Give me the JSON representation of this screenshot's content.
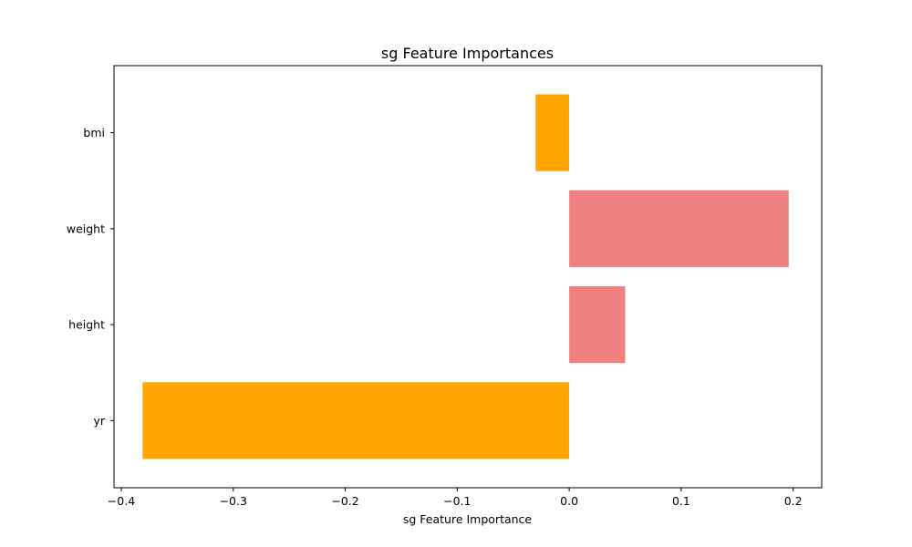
{
  "chart_data": {
    "type": "bar",
    "orientation": "horizontal",
    "title": "sg Feature Importances",
    "xlabel": "sg Feature Importance",
    "ylabel": "",
    "categories": [
      "bmi",
      "weight",
      "height",
      "yr"
    ],
    "values": [
      -0.03,
      0.196,
      0.05,
      -0.381
    ],
    "bar_colors": [
      "#ffa500",
      "#f08080",
      "#f08080",
      "#ffa500"
    ],
    "xlim": [
      -0.4065,
      0.2255
    ],
    "xticks": [
      -0.4,
      -0.3,
      -0.2,
      -0.1,
      0.0,
      0.1,
      0.2
    ],
    "xtick_labels": [
      "−0.4",
      "−0.3",
      "−0.2",
      "−0.1",
      "0.0",
      "0.1",
      "0.2"
    ],
    "grid": false,
    "legend": false
  }
}
